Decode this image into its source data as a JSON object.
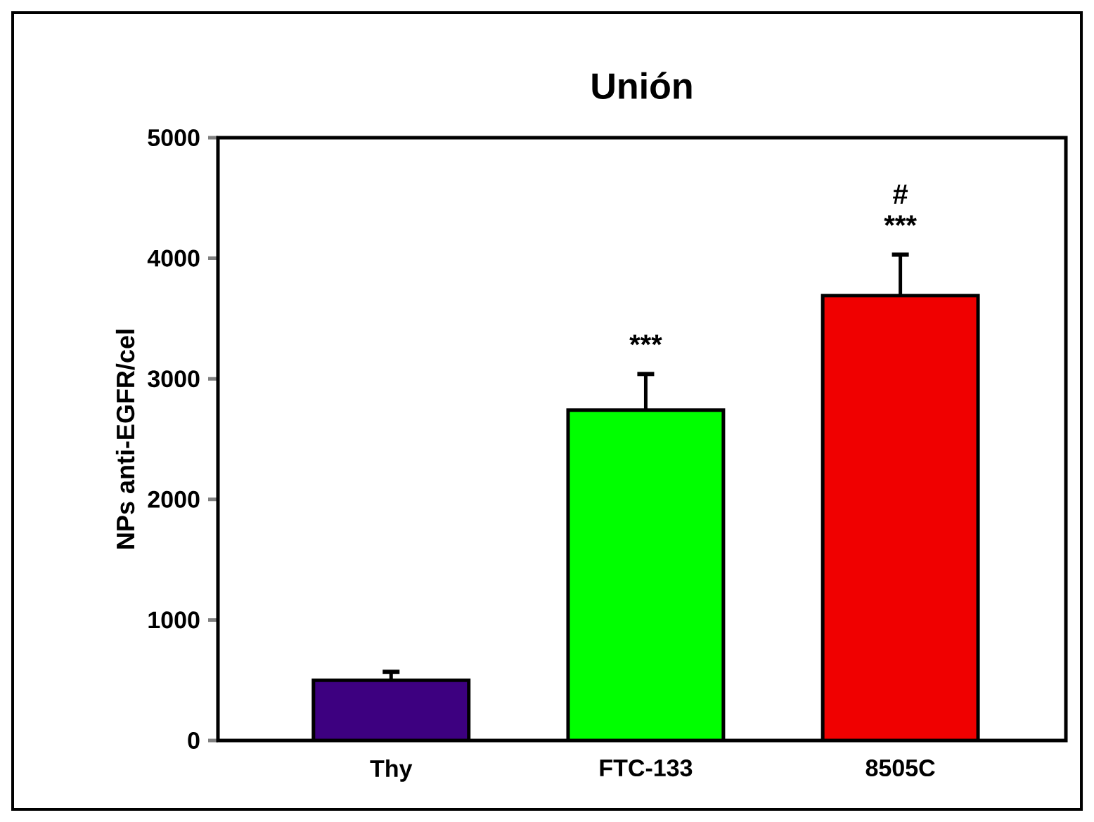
{
  "chart_data": {
    "type": "bar",
    "title": "Unión",
    "ylabel": "NPs anti-EGFR/cel",
    "categories": [
      "Thy",
      "FTC-133",
      "8505C"
    ],
    "values": [
      500,
      2740,
      3690
    ],
    "colors": [
      "#3d0080",
      "#00ff00",
      "#f00000"
    ],
    "errors": [
      [
        500,
        570
      ],
      [
        2740,
        3040
      ],
      [
        3690,
        4030
      ]
    ],
    "ylim": [
      0,
      5000
    ],
    "yticks": [
      0,
      1000,
      2000,
      3000,
      4000,
      5000
    ],
    "grid": false,
    "annotations": [
      {
        "text": "***",
        "x": "FTC-133",
        "y": 3040
      },
      {
        "text": "***",
        "x": "8505C",
        "y": 4030
      },
      {
        "text": "#",
        "x": "8505C",
        "y": 4030
      }
    ]
  }
}
